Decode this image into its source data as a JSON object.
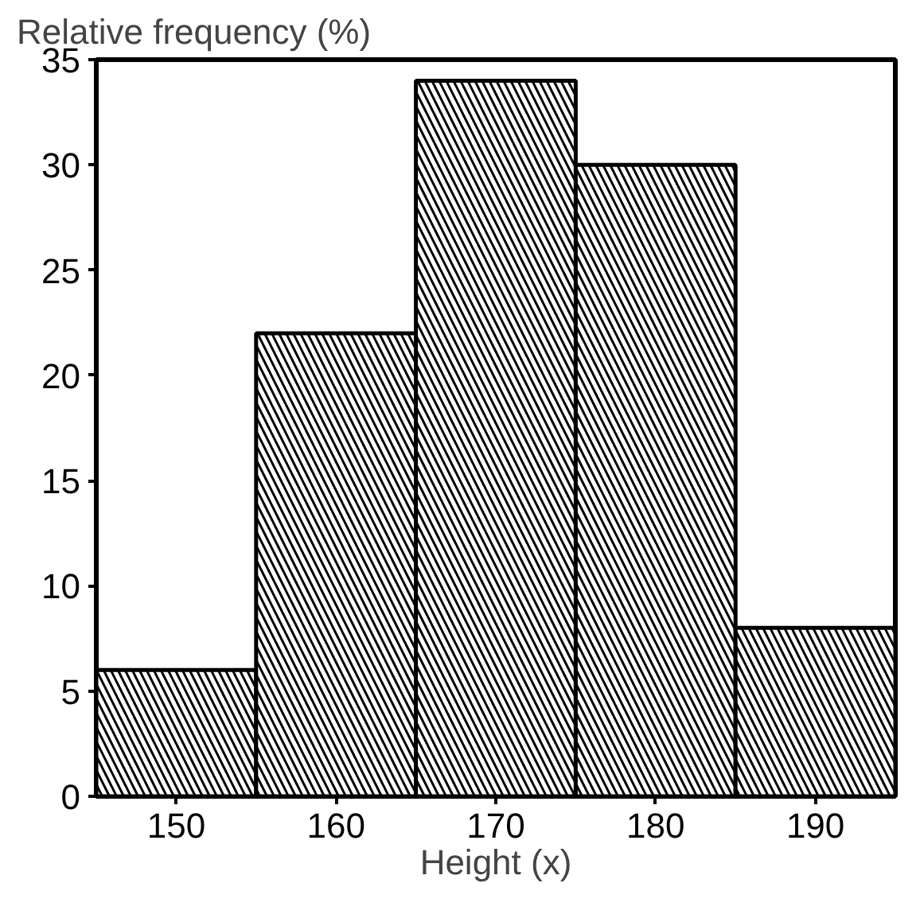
{
  "chart_data": {
    "type": "histogram",
    "ylabel": "Relative frequency (%)",
    "xlabel": "Height (x)",
    "bins": [
      145,
      155,
      165,
      175,
      185,
      195
    ],
    "values": [
      6,
      22,
      34,
      30,
      8
    ],
    "color": "#000000",
    "xlim": [
      145,
      195
    ],
    "xticks": [
      150,
      160,
      170,
      180,
      190
    ],
    "ylim": [
      0,
      35
    ],
    "yticks": [
      0,
      5,
      10,
      15,
      20,
      25,
      30,
      35
    ],
    "grid": false
  }
}
